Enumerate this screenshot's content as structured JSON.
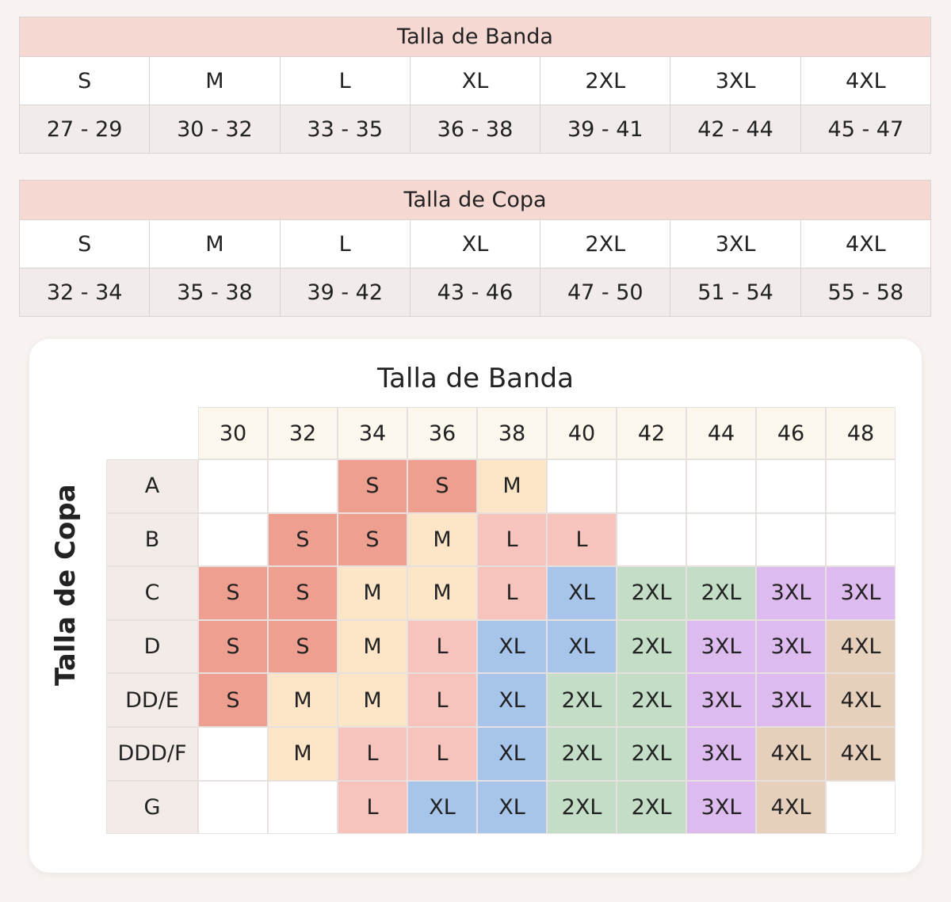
{
  "band_table": {
    "title": "Talla de Banda",
    "sizes": [
      "S",
      "M",
      "L",
      "XL",
      "2XL",
      "3XL",
      "4XL"
    ],
    "ranges": [
      "27 - 29",
      "30 - 32",
      "33 - 35",
      "36 - 38",
      "39 - 41",
      "42 - 44",
      "45 - 47"
    ]
  },
  "cup_table": {
    "title": "Talla de Copa",
    "sizes": [
      "S",
      "M",
      "L",
      "XL",
      "2XL",
      "3XL",
      "4XL"
    ],
    "ranges": [
      "32 - 34",
      "35 - 38",
      "39 - 42",
      "43 - 46",
      "47 - 50",
      "51 - 54",
      "55 - 58"
    ]
  },
  "size_chart": {
    "title": "Talla de Banda",
    "row_axis_label": "Talla de Copa",
    "band_sizes": [
      "30",
      "32",
      "34",
      "36",
      "38",
      "40",
      "42",
      "44",
      "46",
      "48"
    ],
    "cup_sizes": [
      "A",
      "B",
      "C",
      "D",
      "DD/E",
      "DDD/F",
      "G"
    ],
    "grid": [
      [
        "",
        "",
        "S",
        "S",
        "M",
        "",
        "",
        "",
        "",
        ""
      ],
      [
        "",
        "S",
        "S",
        "M",
        "L",
        "L",
        "",
        "",
        "",
        ""
      ],
      [
        "S",
        "S",
        "M",
        "M",
        "L",
        "XL",
        "2XL",
        "2XL",
        "3XL",
        "3XL"
      ],
      [
        "S",
        "S",
        "M",
        "L",
        "XL",
        "XL",
        "2XL",
        "3XL",
        "3XL",
        "4XL"
      ],
      [
        "S",
        "M",
        "M",
        "L",
        "XL",
        "2XL",
        "2XL",
        "3XL",
        "3XL",
        "4XL"
      ],
      [
        "",
        "M",
        "L",
        "L",
        "XL",
        "2XL",
        "2XL",
        "3XL",
        "4XL",
        "4XL"
      ],
      [
        "",
        "",
        "L",
        "XL",
        "XL",
        "2XL",
        "2XL",
        "3XL",
        "4XL",
        ""
      ]
    ]
  },
  "colors": {
    "S": "#ee9f8f",
    "M": "#fde6c8",
    "L": "#f6c3bd",
    "XL": "#a7c5ea",
    "2XL": "#c4ddc7",
    "3XL": "#ddbbef",
    "4XL": "#e6cfbb"
  }
}
